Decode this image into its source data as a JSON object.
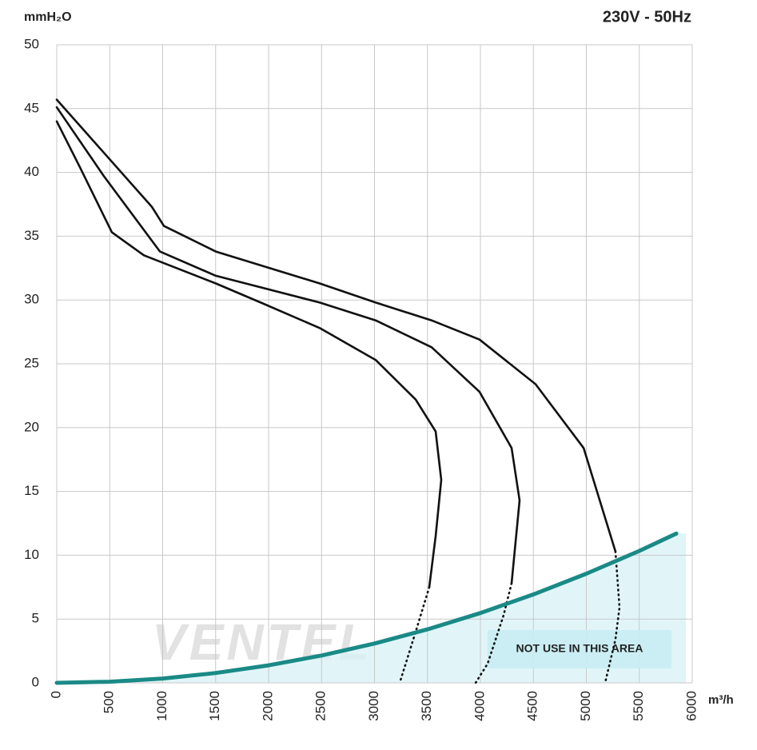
{
  "chart_data": {
    "type": "line",
    "title": "230V - 50Hz",
    "y_label": "mmH₂O",
    "x_label": "m³/h",
    "annotation": "NOT USE IN THIS AREA",
    "watermark": "VENTEL",
    "xlim": [
      0,
      6000
    ],
    "ylim": [
      0,
      50
    ],
    "xticks": [
      0,
      500,
      1000,
      1500,
      2000,
      2500,
      3000,
      3500,
      4000,
      4500,
      5000,
      5500,
      6000
    ],
    "yticks": [
      0,
      5,
      10,
      15,
      20,
      25,
      30,
      35,
      40,
      45,
      50
    ],
    "grid": true,
    "series": [
      {
        "color": "#111111",
        "dashed": false,
        "x": [
          0,
          898,
          1011,
          1502,
          2483,
          3011,
          3540,
          3992,
          4521,
          4974,
          5275
        ],
        "values": [
          45.7,
          37.3,
          35.8,
          33.8,
          31.3,
          29.8,
          28.4,
          26.9,
          23.4,
          18.4,
          10.3
        ]
      },
      {
        "color": "#111111",
        "dashed": true,
        "x": [
          5275,
          5313,
          5275,
          5177
        ],
        "values": [
          10.3,
          5.9,
          3.4,
          0
        ]
      },
      {
        "color": "#111111",
        "dashed": false,
        "x": [
          0,
          445,
          974,
          1502,
          2483,
          3011,
          3540,
          3992,
          4294,
          4370,
          4294
        ],
        "values": [
          45.1,
          39.7,
          33.8,
          31.9,
          29.8,
          28.4,
          26.3,
          22.8,
          18.4,
          14.3,
          7.8
        ]
      },
      {
        "color": "#111111",
        "dashed": true,
        "x": [
          4294,
          4219,
          4068,
          3955
        ],
        "values": [
          7.8,
          5.3,
          1.5,
          0
        ]
      },
      {
        "color": "#111111",
        "dashed": false,
        "x": [
          0,
          219,
          521,
          823,
          1502,
          1955,
          2483,
          3011,
          3389,
          3577,
          3630,
          3577,
          3517
        ],
        "values": [
          44.0,
          40.4,
          35.3,
          33.5,
          31.3,
          29.7,
          27.8,
          25.3,
          22.2,
          19.7,
          15.9,
          11.5,
          7.5
        ]
      },
      {
        "color": "#111111",
        "dashed": true,
        "x": [
          3517,
          3389,
          3238
        ],
        "values": [
          7.5,
          4.0,
          0
        ]
      },
      {
        "color": "#1a8a86",
        "dashed": false,
        "area_fill": "#d9f2f7",
        "width": 5,
        "x": [
          0,
          500,
          1000,
          1500,
          2000,
          2500,
          3000,
          3500,
          4000,
          4500,
          5000,
          5500,
          5850
        ],
        "values": [
          0,
          0.09,
          0.34,
          0.77,
          1.37,
          2.14,
          3.08,
          4.19,
          5.47,
          6.93,
          8.55,
          10.34,
          11.7
        ]
      }
    ]
  }
}
